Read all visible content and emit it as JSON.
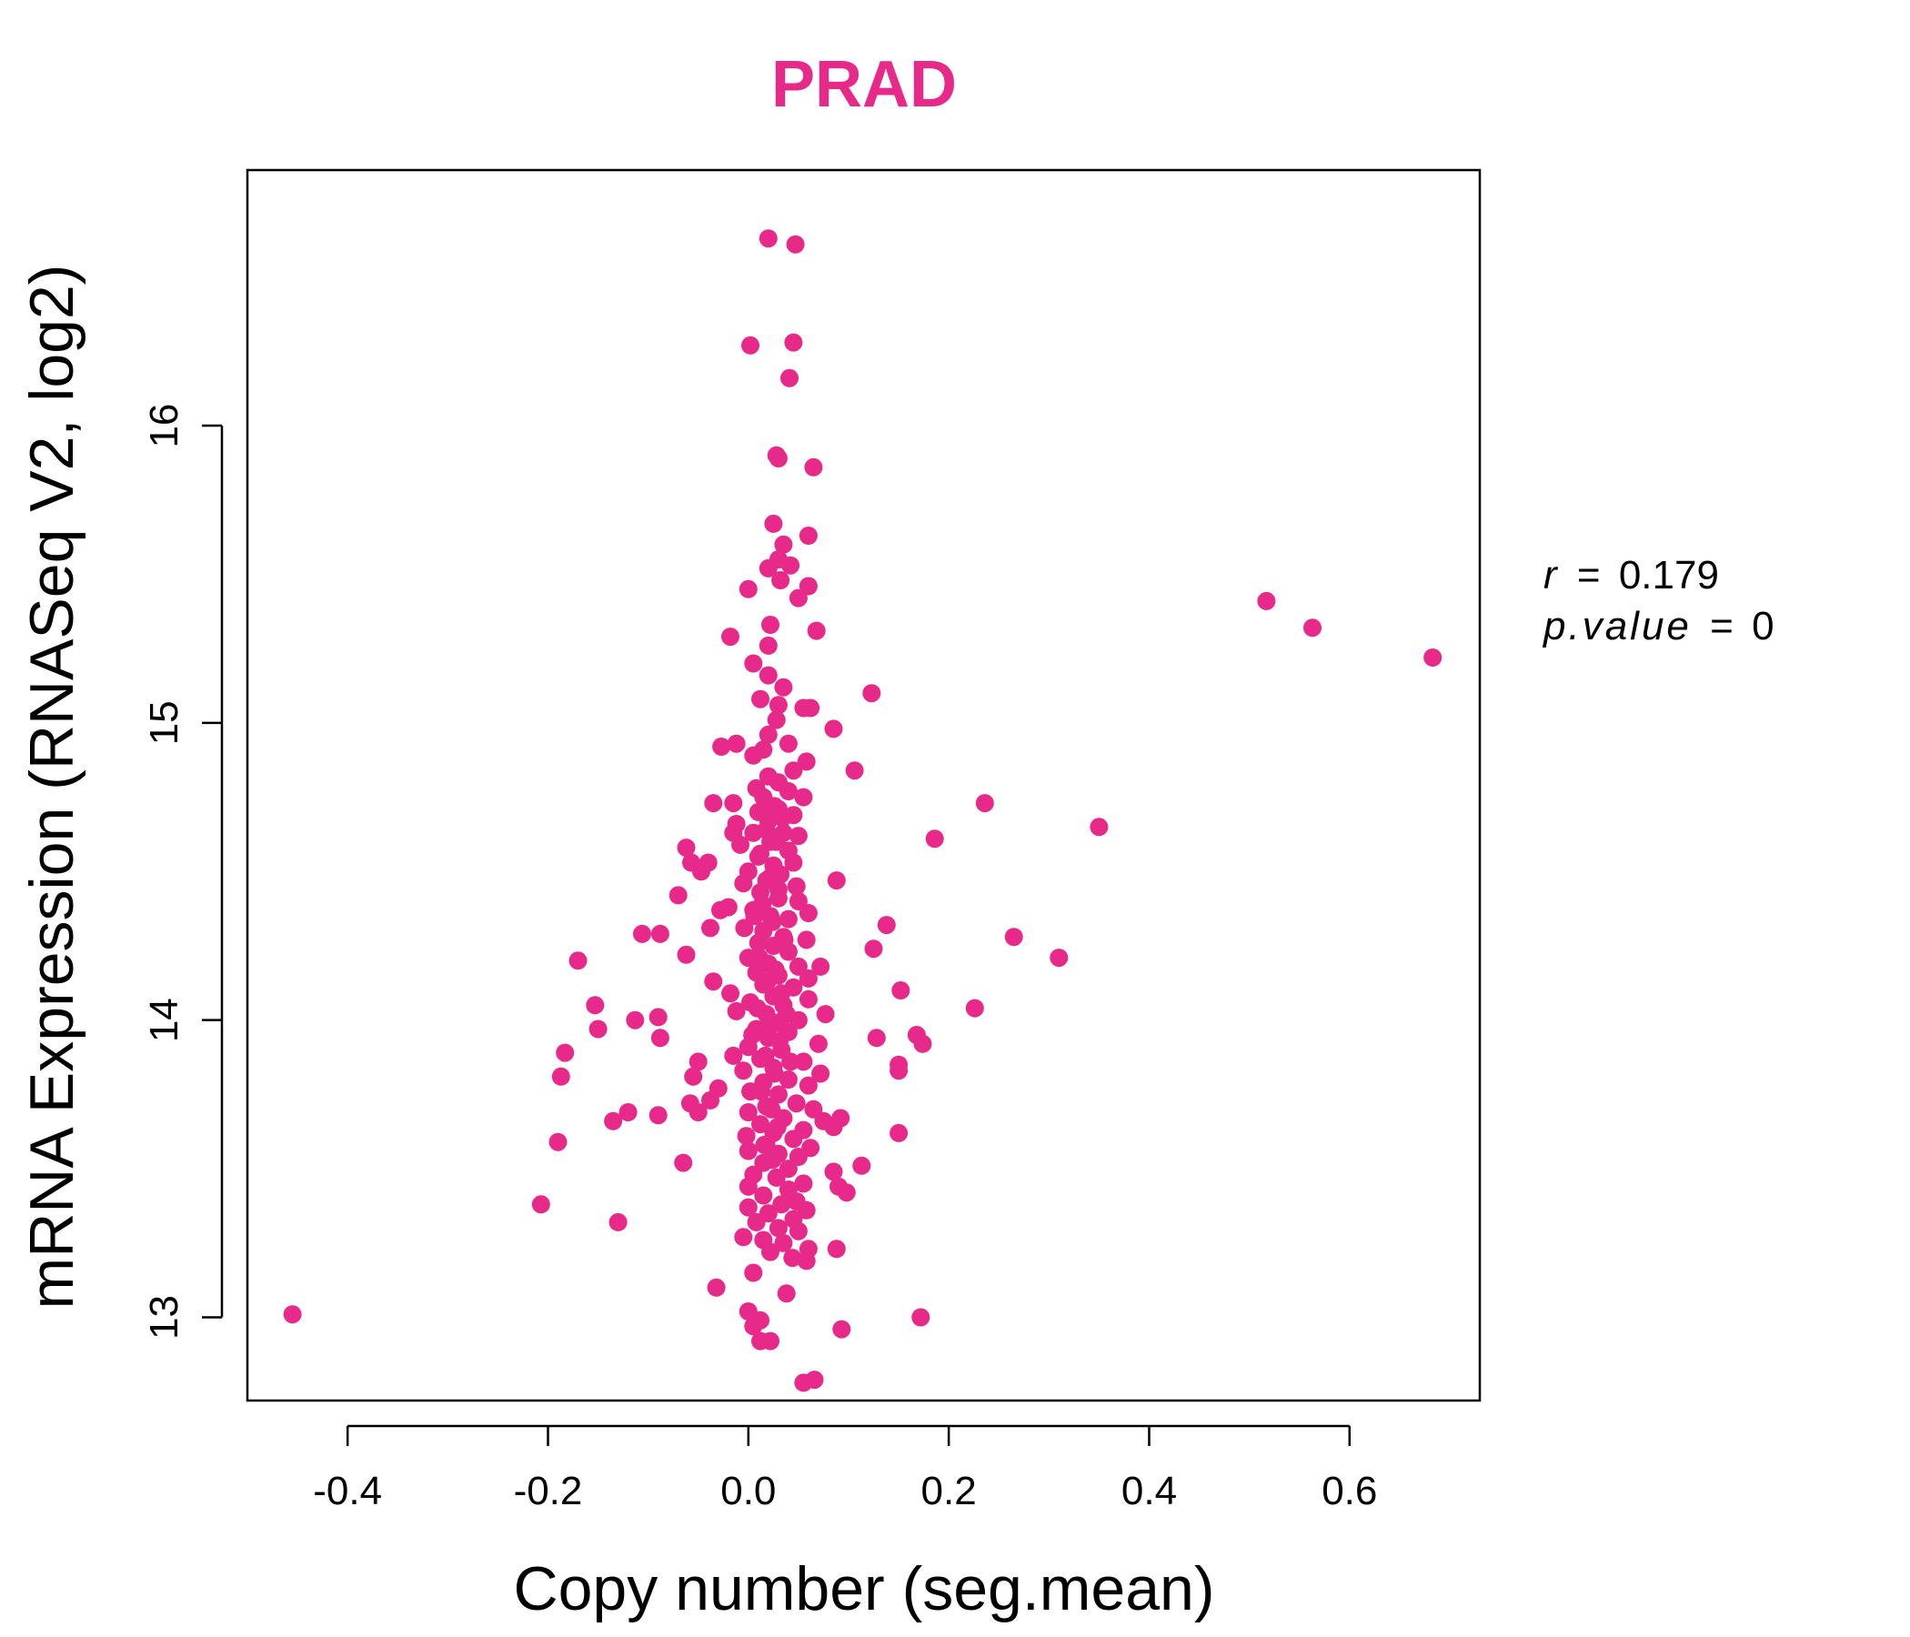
{
  "colors": {
    "accent": "#E7298A",
    "axis": "#000000",
    "background": "#FFFFFF"
  },
  "stats": {
    "r_symbol": "r",
    "r_value": "0.179",
    "p_symbol": "p.value",
    "p_value": "0",
    "equals": "="
  },
  "chart_data": {
    "type": "scatter",
    "title": "PRAD",
    "xlabel": "Copy number (seg.mean)",
    "ylabel": "mRNA Expression (RNASeq V2, log2)",
    "xlim": [
      -0.5,
      0.73
    ],
    "ylim": [
      12.72,
      16.86
    ],
    "xticks": [
      -0.4,
      -0.2,
      0.0,
      0.2,
      0.4,
      0.6
    ],
    "xtick_labels": [
      "-0.4",
      "-0.2",
      "0.0",
      "0.2",
      "0.4",
      "0.6"
    ],
    "yticks": [
      13,
      14,
      15,
      16
    ],
    "ytick_labels": [
      "13",
      "14",
      "15",
      "16"
    ],
    "grid": false,
    "legend": "none",
    "points": [
      {
        "x": 0.02,
        "y": 16.63
      },
      {
        "x": 0.047,
        "y": 16.61
      },
      {
        "x": 0.002,
        "y": 16.27
      },
      {
        "x": 0.045,
        "y": 16.28
      },
      {
        "x": 0.041,
        "y": 16.16
      },
      {
        "x": 0.028,
        "y": 15.9
      },
      {
        "x": 0.03,
        "y": 15.89
      },
      {
        "x": 0.065,
        "y": 15.86
      },
      {
        "x": 0.025,
        "y": 15.67
      },
      {
        "x": 0.06,
        "y": 15.63
      },
      {
        "x": 0.035,
        "y": 15.6
      },
      {
        "x": 0.03,
        "y": 15.55
      },
      {
        "x": 0.02,
        "y": 15.52
      },
      {
        "x": 0.042,
        "y": 15.53
      },
      {
        "x": 0.032,
        "y": 15.48
      },
      {
        "x": 0.06,
        "y": 15.46
      },
      {
        "x": 0.0,
        "y": 15.45
      },
      {
        "x": 0.05,
        "y": 15.42
      },
      {
        "x": 0.022,
        "y": 15.33
      },
      {
        "x": 0.068,
        "y": 15.31
      },
      {
        "x": -0.018,
        "y": 15.29
      },
      {
        "x": 0.02,
        "y": 15.26
      },
      {
        "x": 0.005,
        "y": 15.2
      },
      {
        "x": 0.02,
        "y": 15.16
      },
      {
        "x": 0.035,
        "y": 15.12
      },
      {
        "x": 0.123,
        "y": 15.1
      },
      {
        "x": 0.012,
        "y": 15.08
      },
      {
        "x": 0.03,
        "y": 15.06
      },
      {
        "x": 0.055,
        "y": 15.05
      },
      {
        "x": 0.062,
        "y": 15.05
      },
      {
        "x": 0.028,
        "y": 15.01
      },
      {
        "x": 0.085,
        "y": 14.98
      },
      {
        "x": 0.02,
        "y": 14.96
      },
      {
        "x": -0.012,
        "y": 14.93
      },
      {
        "x": -0.027,
        "y": 14.92
      },
      {
        "x": 0.04,
        "y": 14.93
      },
      {
        "x": 0.015,
        "y": 14.91
      },
      {
        "x": 0.005,
        "y": 14.89
      },
      {
        "x": 0.058,
        "y": 14.87
      },
      {
        "x": 0.045,
        "y": 14.84
      },
      {
        "x": 0.106,
        "y": 14.84
      },
      {
        "x": 0.02,
        "y": 14.82
      },
      {
        "x": 0.03,
        "y": 14.8
      },
      {
        "x": 0.008,
        "y": 14.78
      },
      {
        "x": 0.04,
        "y": 14.77
      },
      {
        "x": 0.015,
        "y": 14.75
      },
      {
        "x": 0.055,
        "y": 14.75
      },
      {
        "x": -0.035,
        "y": 14.73
      },
      {
        "x": -0.015,
        "y": 14.73
      },
      {
        "x": 0.236,
        "y": 14.73
      },
      {
        "x": 0.01,
        "y": 14.7
      },
      {
        "x": 0.03,
        "y": 14.71
      },
      {
        "x": 0.045,
        "y": 14.69
      },
      {
        "x": 0.02,
        "y": 14.67
      },
      {
        "x": -0.012,
        "y": 14.66
      },
      {
        "x": 0.35,
        "y": 14.65
      },
      {
        "x": 0.005,
        "y": 14.63
      },
      {
        "x": 0.035,
        "y": 14.63
      },
      {
        "x": 0.05,
        "y": 14.62
      },
      {
        "x": -0.015,
        "y": 14.63
      },
      {
        "x": 0.186,
        "y": 14.61
      },
      {
        "x": 0.022,
        "y": 14.6
      },
      {
        "x": -0.008,
        "y": 14.59
      },
      {
        "x": -0.062,
        "y": 14.58
      },
      {
        "x": 0.04,
        "y": 14.57
      },
      {
        "x": 0.012,
        "y": 14.56
      },
      {
        "x": -0.057,
        "y": 14.53
      },
      {
        "x": -0.04,
        "y": 14.53
      },
      {
        "x": 0.045,
        "y": 14.53
      },
      {
        "x": 0.025,
        "y": 14.52
      },
      {
        "x": -0.047,
        "y": 14.5
      },
      {
        "x": 0.0,
        "y": 14.5
      },
      {
        "x": 0.032,
        "y": 14.49
      },
      {
        "x": 0.088,
        "y": 14.47
      },
      {
        "x": 0.018,
        "y": 14.47
      },
      {
        "x": -0.005,
        "y": 14.46
      },
      {
        "x": 0.048,
        "y": 14.45
      },
      {
        "x": 0.012,
        "y": 14.43
      },
      {
        "x": -0.07,
        "y": 14.42
      },
      {
        "x": 0.03,
        "y": 14.41
      },
      {
        "x": 0.05,
        "y": 14.4
      },
      {
        "x": -0.02,
        "y": 14.38
      },
      {
        "x": -0.028,
        "y": 14.37
      },
      {
        "x": 0.005,
        "y": 14.37
      },
      {
        "x": 0.022,
        "y": 14.35
      },
      {
        "x": 0.06,
        "y": 14.36
      },
      {
        "x": 0.04,
        "y": 14.34
      },
      {
        "x": 0.138,
        "y": 14.32
      },
      {
        "x": -0.004,
        "y": 14.31
      },
      {
        "x": -0.038,
        "y": 14.31
      },
      {
        "x": 0.015,
        "y": 14.3
      },
      {
        "x": -0.088,
        "y": 14.29
      },
      {
        "x": -0.106,
        "y": 14.29
      },
      {
        "x": 0.265,
        "y": 14.28
      },
      {
        "x": 0.035,
        "y": 14.28
      },
      {
        "x": 0.058,
        "y": 14.27
      },
      {
        "x": 0.01,
        "y": 14.26
      },
      {
        "x": 0.025,
        "y": 14.25
      },
      {
        "x": 0.125,
        "y": 14.24
      },
      {
        "x": -0.062,
        "y": 14.22
      },
      {
        "x": 0.04,
        "y": 14.23
      },
      {
        "x": 0.0,
        "y": 14.21
      },
      {
        "x": -0.17,
        "y": 14.2
      },
      {
        "x": 0.31,
        "y": 14.21
      },
      {
        "x": 0.02,
        "y": 14.19
      },
      {
        "x": 0.05,
        "y": 14.18
      },
      {
        "x": 0.072,
        "y": 14.18
      },
      {
        "x": 0.008,
        "y": 14.16
      },
      {
        "x": 0.03,
        "y": 14.15
      },
      {
        "x": 0.06,
        "y": 14.14
      },
      {
        "x": -0.035,
        "y": 14.13
      },
      {
        "x": 0.015,
        "y": 14.12
      },
      {
        "x": 0.045,
        "y": 14.11
      },
      {
        "x": 0.152,
        "y": 14.1
      },
      {
        "x": -0.018,
        "y": 14.09
      },
      {
        "x": 0.025,
        "y": 14.08
      },
      {
        "x": 0.06,
        "y": 14.07
      },
      {
        "x": 0.002,
        "y": 14.06
      },
      {
        "x": 0.035,
        "y": 14.05
      },
      {
        "x": -0.153,
        "y": 14.05
      },
      {
        "x": 0.226,
        "y": 14.04
      },
      {
        "x": -0.012,
        "y": 14.03
      },
      {
        "x": 0.018,
        "y": 14.02
      },
      {
        "x": 0.077,
        "y": 14.02
      },
      {
        "x": -0.09,
        "y": 14.01
      },
      {
        "x": -0.113,
        "y": 14.0
      },
      {
        "x": 0.05,
        "y": 14.0
      },
      {
        "x": 0.028,
        "y": 13.99
      },
      {
        "x": -0.15,
        "y": 13.97
      },
      {
        "x": 0.008,
        "y": 13.97
      },
      {
        "x": 0.04,
        "y": 13.96
      },
      {
        "x": 0.168,
        "y": 13.95
      },
      {
        "x": 0.128,
        "y": 13.94
      },
      {
        "x": -0.088,
        "y": 13.94
      },
      {
        "x": 0.02,
        "y": 13.94
      },
      {
        "x": 0.174,
        "y": 13.92
      },
      {
        "x": 0.07,
        "y": 13.92
      },
      {
        "x": 0.0,
        "y": 13.91
      },
      {
        "x": 0.033,
        "y": 13.9
      },
      {
        "x": -0.183,
        "y": 13.89
      },
      {
        "x": -0.015,
        "y": 13.88
      },
      {
        "x": 0.012,
        "y": 13.87
      },
      {
        "x": -0.05,
        "y": 13.86
      },
      {
        "x": 0.055,
        "y": 13.86
      },
      {
        "x": 0.15,
        "y": 13.85
      },
      {
        "x": 0.025,
        "y": 13.84
      },
      {
        "x": -0.005,
        "y": 13.83
      },
      {
        "x": 0.15,
        "y": 13.83
      },
      {
        "x": 0.072,
        "y": 13.82
      },
      {
        "x": -0.187,
        "y": 13.81
      },
      {
        "x": -0.055,
        "y": 13.81
      },
      {
        "x": 0.04,
        "y": 13.8
      },
      {
        "x": 0.015,
        "y": 13.79
      },
      {
        "x": 0.06,
        "y": 13.78
      },
      {
        "x": -0.03,
        "y": 13.77
      },
      {
        "x": 0.002,
        "y": 13.76
      },
      {
        "x": 0.03,
        "y": 13.75
      },
      {
        "x": -0.038,
        "y": 13.73
      },
      {
        "x": 0.048,
        "y": 13.72
      },
      {
        "x": -0.058,
        "y": 13.72
      },
      {
        "x": 0.018,
        "y": 13.71
      },
      {
        "x": 0.065,
        "y": 13.7
      },
      {
        "x": -0.12,
        "y": 13.69
      },
      {
        "x": -0.05,
        "y": 13.69
      },
      {
        "x": 0.0,
        "y": 13.69
      },
      {
        "x": -0.09,
        "y": 13.68
      },
      {
        "x": 0.035,
        "y": 13.67
      },
      {
        "x": 0.092,
        "y": 13.67
      },
      {
        "x": -0.135,
        "y": 13.66
      },
      {
        "x": 0.075,
        "y": 13.66
      },
      {
        "x": 0.012,
        "y": 13.65
      },
      {
        "x": 0.085,
        "y": 13.64
      },
      {
        "x": 0.055,
        "y": 13.63
      },
      {
        "x": 0.025,
        "y": 13.62
      },
      {
        "x": 0.15,
        "y": 13.62
      },
      {
        "x": -0.002,
        "y": 13.61
      },
      {
        "x": 0.045,
        "y": 13.6
      },
      {
        "x": -0.19,
        "y": 13.59
      },
      {
        "x": 0.018,
        "y": 13.58
      },
      {
        "x": 0.062,
        "y": 13.57
      },
      {
        "x": 0.0,
        "y": 13.56
      },
      {
        "x": 0.03,
        "y": 13.55
      },
      {
        "x": 0.05,
        "y": 13.54
      },
      {
        "x": -0.065,
        "y": 13.52
      },
      {
        "x": 0.015,
        "y": 13.52
      },
      {
        "x": 0.113,
        "y": 13.51
      },
      {
        "x": 0.04,
        "y": 13.5
      },
      {
        "x": 0.085,
        "y": 13.49
      },
      {
        "x": 0.005,
        "y": 13.48
      },
      {
        "x": 0.028,
        "y": 13.47
      },
      {
        "x": 0.055,
        "y": 13.45
      },
      {
        "x": 0.0,
        "y": 13.44
      },
      {
        "x": 0.09,
        "y": 13.44
      },
      {
        "x": 0.04,
        "y": 13.43
      },
      {
        "x": 0.098,
        "y": 13.42
      },
      {
        "x": 0.015,
        "y": 13.41
      },
      {
        "x": -0.207,
        "y": 13.38
      },
      {
        "x": 0.048,
        "y": 13.39
      },
      {
        "x": 0.033,
        "y": 13.38
      },
      {
        "x": 0.0,
        "y": 13.37
      },
      {
        "x": 0.058,
        "y": 13.36
      },
      {
        "x": 0.02,
        "y": 13.35
      },
      {
        "x": 0.045,
        "y": 13.33
      },
      {
        "x": 0.008,
        "y": 13.32
      },
      {
        "x": -0.13,
        "y": 13.32
      },
      {
        "x": 0.03,
        "y": 13.3
      },
      {
        "x": 0.05,
        "y": 13.29
      },
      {
        "x": -0.005,
        "y": 13.27
      },
      {
        "x": 0.015,
        "y": 13.26
      },
      {
        "x": 0.035,
        "y": 13.25
      },
      {
        "x": 0.06,
        "y": 13.23
      },
      {
        "x": 0.088,
        "y": 13.23
      },
      {
        "x": 0.022,
        "y": 13.22
      },
      {
        "x": 0.044,
        "y": 13.2
      },
      {
        "x": 0.058,
        "y": 13.19
      },
      {
        "x": 0.005,
        "y": 13.15
      },
      {
        "x": -0.032,
        "y": 13.1
      },
      {
        "x": 0.038,
        "y": 13.08
      },
      {
        "x": 0.0,
        "y": 13.02
      },
      {
        "x": 0.172,
        "y": 13.0
      },
      {
        "x": 0.012,
        "y": 12.99
      },
      {
        "x": 0.005,
        "y": 12.97
      },
      {
        "x": 0.093,
        "y": 12.96
      },
      {
        "x": 0.012,
        "y": 12.92
      },
      {
        "x": 0.022,
        "y": 12.92
      },
      {
        "x": 0.055,
        "y": 12.78
      },
      {
        "x": 0.066,
        "y": 12.79
      },
      {
        "x": -0.455,
        "y": 13.01
      },
      {
        "x": 0.517,
        "y": 15.41
      },
      {
        "x": 0.563,
        "y": 15.32
      },
      {
        "x": 0.683,
        "y": 15.22
      },
      {
        "x": 0.01,
        "y": 14.55
      },
      {
        "x": 0.022,
        "y": 14.48
      },
      {
        "x": 0.03,
        "y": 14.44
      },
      {
        "x": 0.014,
        "y": 14.39
      },
      {
        "x": 0.024,
        "y": 14.33
      },
      {
        "x": 0.036,
        "y": 14.27
      },
      {
        "x": 0.011,
        "y": 14.21
      },
      {
        "x": 0.027,
        "y": 14.17
      },
      {
        "x": 0.019,
        "y": 14.13
      },
      {
        "x": 0.033,
        "y": 14.09
      },
      {
        "x": 0.009,
        "y": 14.04
      },
      {
        "x": 0.021,
        "y": 13.98
      },
      {
        "x": 0.031,
        "y": 13.93
      },
      {
        "x": 0.017,
        "y": 13.88
      },
      {
        "x": 0.026,
        "y": 13.82
      },
      {
        "x": 0.013,
        "y": 13.76
      },
      {
        "x": 0.023,
        "y": 13.7
      },
      {
        "x": 0.029,
        "y": 13.64
      },
      {
        "x": 0.016,
        "y": 13.58
      },
      {
        "x": 0.024,
        "y": 13.53
      },
      {
        "x": 0.006,
        "y": 14.35
      },
      {
        "x": 0.038,
        "y": 14.02
      },
      {
        "x": 0.004,
        "y": 13.95
      },
      {
        "x": 0.042,
        "y": 13.86
      },
      {
        "x": 0.028,
        "y": 14.6
      },
      {
        "x": 0.018,
        "y": 14.64
      },
      {
        "x": 0.034,
        "y": 14.68
      },
      {
        "x": 0.026,
        "y": 14.72
      }
    ]
  }
}
